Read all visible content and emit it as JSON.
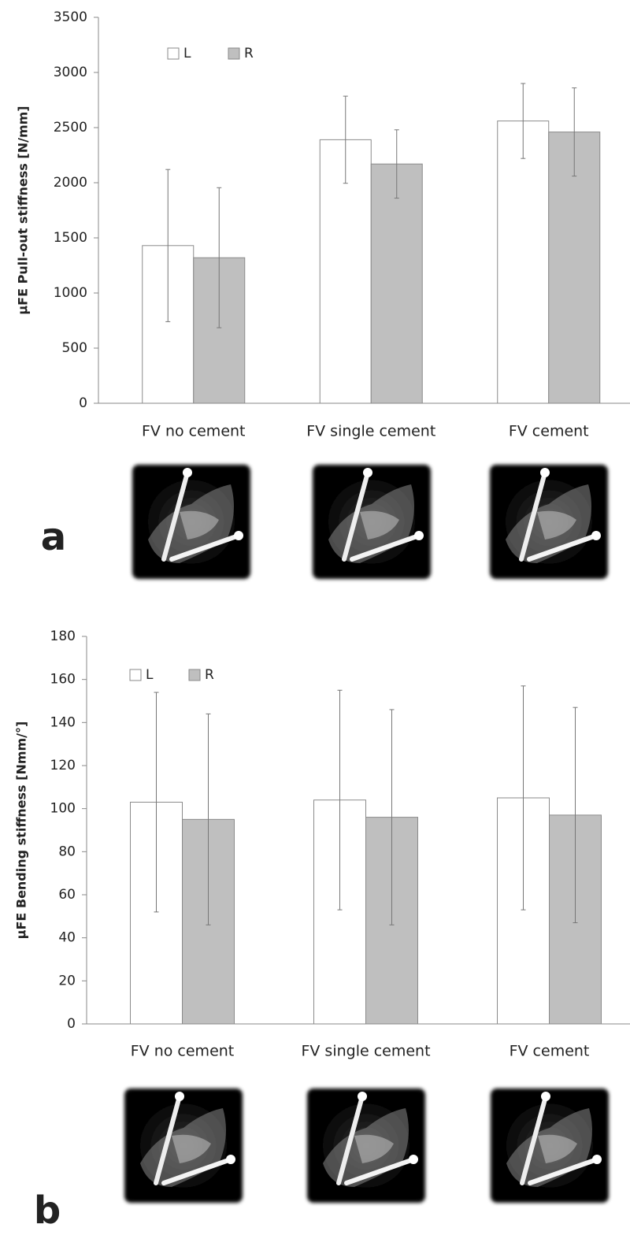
{
  "chart_data": [
    {
      "type": "bar",
      "panel": "a",
      "y_label": "µFE Pull-out stiffness [N/mm]",
      "categories": [
        "FV no cement",
        "FV single cement",
        "FV cement"
      ],
      "series": [
        {
          "name": "L",
          "color": "#ffffff",
          "values": [
            1430,
            2390,
            2560
          ],
          "errors": [
            690,
            395,
            340
          ]
        },
        {
          "name": "R",
          "color": "#bfbfbf",
          "values": [
            1320,
            2170,
            2460
          ],
          "errors": [
            635,
            310,
            400
          ]
        }
      ],
      "ylim": [
        0,
        3500
      ],
      "yticks": [
        0,
        500,
        1000,
        1500,
        2000,
        2500,
        3000,
        3500
      ],
      "grid": false,
      "legend": "top-left"
    },
    {
      "type": "bar",
      "panel": "b",
      "y_label": "µFE Bending stiffness [Nmm/°]",
      "categories": [
        "FV no cement",
        "FV single cement",
        "FV cement"
      ],
      "series": [
        {
          "name": "L",
          "color": "#ffffff",
          "values": [
            103,
            104,
            105
          ],
          "errors": [
            51,
            51,
            52
          ]
        },
        {
          "name": "R",
          "color": "#bfbfbf",
          "values": [
            95,
            96,
            97
          ],
          "errors": [
            49,
            50,
            50
          ]
        }
      ],
      "ylim": [
        0,
        180
      ],
      "yticks": [
        0,
        20,
        40,
        60,
        80,
        100,
        120,
        140,
        160,
        180
      ],
      "grid": false,
      "legend": "top-left"
    }
  ]
}
